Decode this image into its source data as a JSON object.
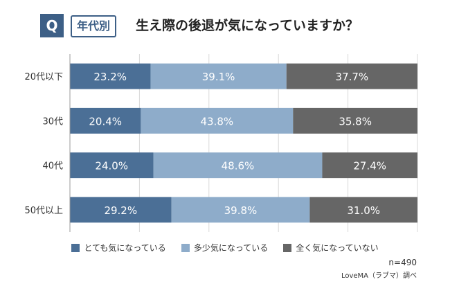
{
  "header": {
    "badge": "Q",
    "tag": "年代別",
    "title": "生え際の後退が気になっていますか？"
  },
  "chart_data": {
    "type": "bar",
    "orientation": "horizontal-stacked-100",
    "categories": [
      "20代以下",
      "30代",
      "40代",
      "50代以上"
    ],
    "series": [
      {
        "name": "とても気になっている",
        "color": "#4b6f96",
        "values": [
          23.2,
          20.4,
          24.0,
          29.2
        ]
      },
      {
        "name": "多少気になっている",
        "color": "#8eacca",
        "values": [
          39.1,
          43.8,
          48.6,
          39.8
        ]
      },
      {
        "name": "全く気になっていない",
        "color": "#666666",
        "values": [
          37.7,
          35.8,
          27.4,
          31.0
        ]
      }
    ],
    "unit": "%",
    "xlim": [
      0,
      100
    ],
    "grid": true,
    "legend_position": "bottom"
  },
  "footer": {
    "n": "n=490",
    "source": "LoveMA（ラブマ）調べ"
  }
}
